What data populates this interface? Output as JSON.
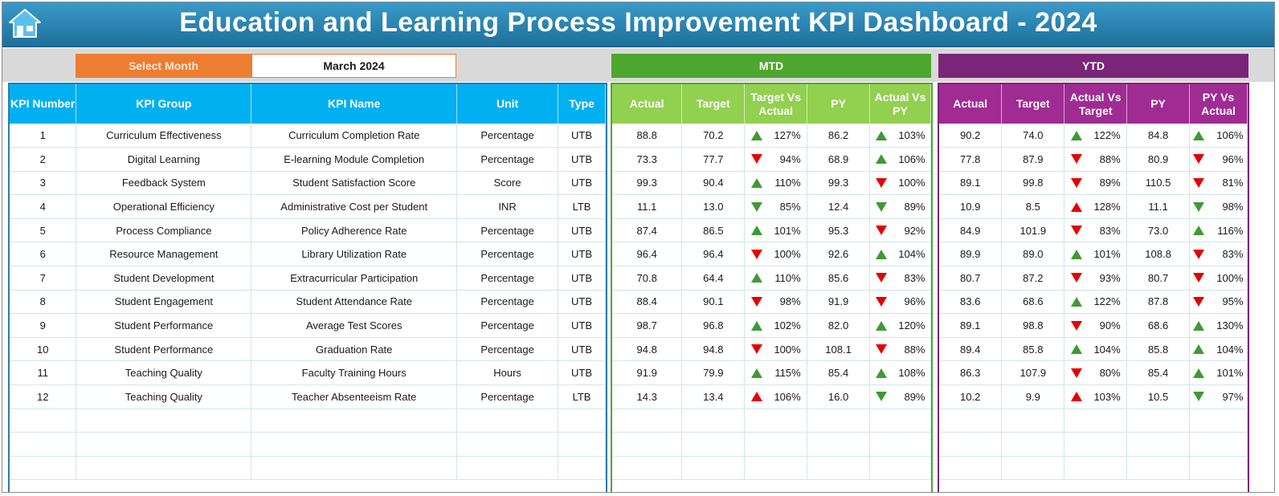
{
  "title": "Education and Learning Process Improvement KPI Dashboard - 2024",
  "icon": "home-icon",
  "select_month": {
    "label": "Select Month",
    "value": "March 2024"
  },
  "sections": {
    "mtd": "MTD",
    "ytd": "YTD"
  },
  "colors": {
    "header": "#2a86b6",
    "kpi": "#00b0f0",
    "mtd": "#92d050",
    "ytd": "#a02b93",
    "select": "#ed7d31",
    "up": "#3e9b32",
    "down": "#e60000"
  },
  "kpi_columns": [
    "KPI Number",
    "KPI Group",
    "KPI Name",
    "Unit",
    "Type"
  ],
  "mtd_columns": [
    "Actual",
    "Target",
    "Target Vs Actual",
    "PY",
    "Actual Vs PY"
  ],
  "ytd_columns": [
    "Actual",
    "Target",
    "Actual Vs Target",
    "PY",
    "PY Vs Actual"
  ],
  "rows": [
    {
      "num": "1",
      "group": "Curriculum Effectiveness",
      "name": "Curriculum Completion Rate",
      "unit": "Percentage",
      "type": "UTB",
      "mtd": {
        "actual": "88.8",
        "target": "70.2",
        "tva": "127%",
        "tva_ind": "up-green",
        "py": "86.2",
        "avp": "103%",
        "avp_ind": "up-green"
      },
      "ytd": {
        "actual": "90.2",
        "target": "74.0",
        "avt": "122%",
        "avt_ind": "up-green",
        "py": "84.8",
        "pva": "106%",
        "pva_ind": "up-green"
      }
    },
    {
      "num": "2",
      "group": "Digital Learning",
      "name": "E-learning Module Completion",
      "unit": "Percentage",
      "type": "UTB",
      "mtd": {
        "actual": "73.3",
        "target": "77.7",
        "tva": "94%",
        "tva_ind": "down-red",
        "py": "68.9",
        "avp": "106%",
        "avp_ind": "up-green"
      },
      "ytd": {
        "actual": "77.8",
        "target": "87.9",
        "avt": "88%",
        "avt_ind": "down-red",
        "py": "80.9",
        "pva": "96%",
        "pva_ind": "down-red"
      }
    },
    {
      "num": "3",
      "group": "Feedback System",
      "name": "Student Satisfaction Score",
      "unit": "Score",
      "type": "UTB",
      "mtd": {
        "actual": "99.3",
        "target": "90.4",
        "tva": "110%",
        "tva_ind": "up-green",
        "py": "99.3",
        "avp": "100%",
        "avp_ind": "down-red"
      },
      "ytd": {
        "actual": "89.1",
        "target": "99.8",
        "avt": "89%",
        "avt_ind": "down-red",
        "py": "110.5",
        "pva": "81%",
        "pva_ind": "down-red"
      }
    },
    {
      "num": "4",
      "group": "Operational Efficiency",
      "name": "Administrative Cost per Student",
      "unit": "INR",
      "type": "LTB",
      "mtd": {
        "actual": "11.1",
        "target": "13.0",
        "tva": "85%",
        "tva_ind": "down-green",
        "py": "12.4",
        "avp": "89%",
        "avp_ind": "down-green"
      },
      "ytd": {
        "actual": "10.9",
        "target": "8.5",
        "avt": "128%",
        "avt_ind": "up-red",
        "py": "11.1",
        "pva": "98%",
        "pva_ind": "down-green"
      }
    },
    {
      "num": "5",
      "group": "Process Compliance",
      "name": "Policy Adherence Rate",
      "unit": "Percentage",
      "type": "UTB",
      "mtd": {
        "actual": "87.4",
        "target": "86.5",
        "tva": "101%",
        "tva_ind": "up-green",
        "py": "95.3",
        "avp": "92%",
        "avp_ind": "down-red"
      },
      "ytd": {
        "actual": "84.9",
        "target": "101.9",
        "avt": "83%",
        "avt_ind": "down-red",
        "py": "73.0",
        "pva": "116%",
        "pva_ind": "up-green"
      }
    },
    {
      "num": "6",
      "group": "Resource Management",
      "name": "Library Utilization Rate",
      "unit": "Percentage",
      "type": "UTB",
      "mtd": {
        "actual": "96.4",
        "target": "96.4",
        "tva": "100%",
        "tva_ind": "down-red",
        "py": "92.6",
        "avp": "104%",
        "avp_ind": "up-green"
      },
      "ytd": {
        "actual": "89.9",
        "target": "89.0",
        "avt": "101%",
        "avt_ind": "up-green",
        "py": "108.8",
        "pva": "83%",
        "pva_ind": "down-red"
      }
    },
    {
      "num": "7",
      "group": "Student Development",
      "name": "Extracurricular Participation",
      "unit": "Percentage",
      "type": "UTB",
      "mtd": {
        "actual": "70.8",
        "target": "64.4",
        "tva": "110%",
        "tva_ind": "up-green",
        "py": "85.6",
        "avp": "83%",
        "avp_ind": "down-red"
      },
      "ytd": {
        "actual": "80.7",
        "target": "87.2",
        "avt": "93%",
        "avt_ind": "down-red",
        "py": "80.7",
        "pva": "100%",
        "pva_ind": "down-red"
      }
    },
    {
      "num": "8",
      "group": "Student Engagement",
      "name": "Student Attendance Rate",
      "unit": "Percentage",
      "type": "UTB",
      "mtd": {
        "actual": "88.4",
        "target": "90.1",
        "tva": "98%",
        "tva_ind": "down-red",
        "py": "91.9",
        "avp": "96%",
        "avp_ind": "down-red"
      },
      "ytd": {
        "actual": "83.6",
        "target": "68.6",
        "avt": "122%",
        "avt_ind": "up-green",
        "py": "87.8",
        "pva": "95%",
        "pva_ind": "down-red"
      }
    },
    {
      "num": "9",
      "group": "Student Performance",
      "name": "Average Test Scores",
      "unit": "Percentage",
      "type": "UTB",
      "mtd": {
        "actual": "98.7",
        "target": "96.8",
        "tva": "102%",
        "tva_ind": "up-green",
        "py": "82.0",
        "avp": "120%",
        "avp_ind": "up-green"
      },
      "ytd": {
        "actual": "89.1",
        "target": "98.8",
        "avt": "90%",
        "avt_ind": "down-red",
        "py": "68.6",
        "pva": "130%",
        "pva_ind": "up-green"
      }
    },
    {
      "num": "10",
      "group": "Student Performance",
      "name": "Graduation Rate",
      "unit": "Percentage",
      "type": "UTB",
      "mtd": {
        "actual": "94.8",
        "target": "94.8",
        "tva": "100%",
        "tva_ind": "down-red",
        "py": "108.1",
        "avp": "88%",
        "avp_ind": "down-red"
      },
      "ytd": {
        "actual": "89.4",
        "target": "85.8",
        "avt": "104%",
        "avt_ind": "up-green",
        "py": "85.8",
        "pva": "104%",
        "pva_ind": "up-green"
      }
    },
    {
      "num": "11",
      "group": "Teaching Quality",
      "name": "Faculty Training Hours",
      "unit": "Hours",
      "type": "UTB",
      "mtd": {
        "actual": "91.9",
        "target": "79.9",
        "tva": "115%",
        "tva_ind": "up-green",
        "py": "85.4",
        "avp": "108%",
        "avp_ind": "up-green"
      },
      "ytd": {
        "actual": "86.3",
        "target": "107.9",
        "avt": "80%",
        "avt_ind": "down-red",
        "py": "85.4",
        "pva": "101%",
        "pva_ind": "up-green"
      }
    },
    {
      "num": "12",
      "group": "Teaching Quality",
      "name": "Teacher Absenteeism Rate",
      "unit": "Percentage",
      "type": "LTB",
      "mtd": {
        "actual": "14.3",
        "target": "13.4",
        "tva": "106%",
        "tva_ind": "up-red",
        "py": "16.0",
        "avp": "89%",
        "avp_ind": "down-green"
      },
      "ytd": {
        "actual": "10.2",
        "target": "9.9",
        "avt": "103%",
        "avt_ind": "up-red",
        "py": "10.5",
        "pva": "97%",
        "pva_ind": "down-green"
      }
    }
  ],
  "empty_rows": 3
}
